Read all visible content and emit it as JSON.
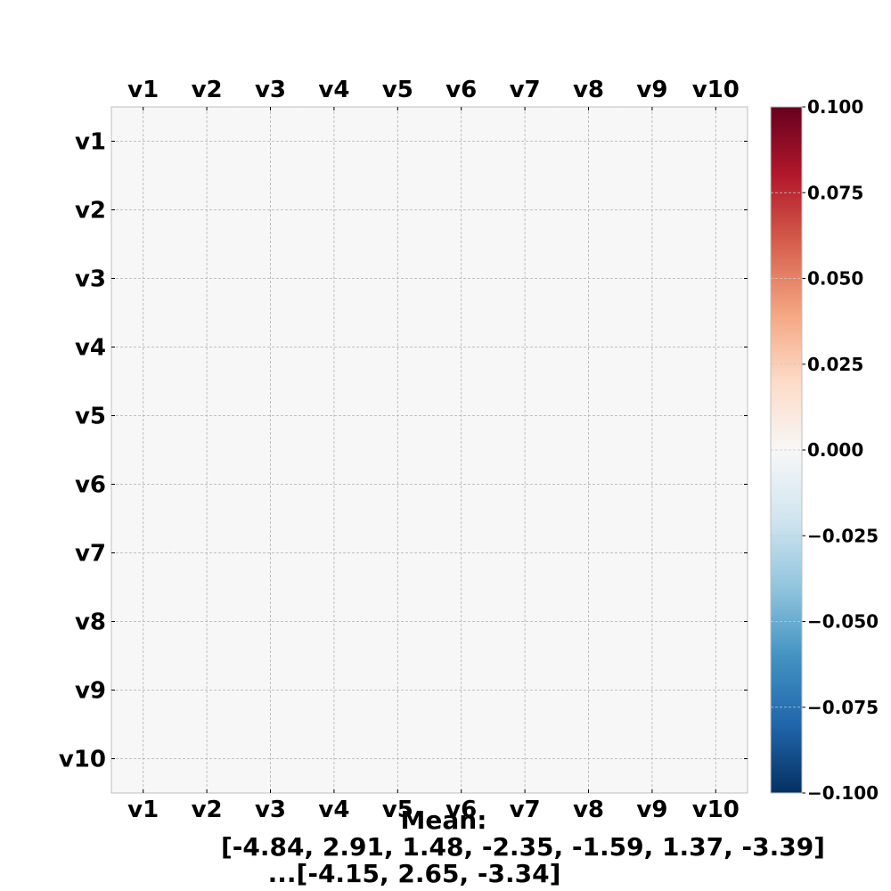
{
  "chart_data": {
    "type": "heatmap",
    "title": "",
    "xlabel": "",
    "ylabel": "",
    "x_labels": [
      "v1",
      "v2",
      "v3",
      "v4",
      "v5",
      "v6",
      "v7",
      "v8",
      "v9",
      "v10"
    ],
    "y_labels": [
      "v1",
      "v2",
      "v3",
      "v4",
      "v5",
      "v6",
      "v7",
      "v8",
      "v9",
      "v10"
    ],
    "values": [
      [
        0,
        0,
        0,
        0,
        0,
        0,
        0,
        0,
        0,
        0
      ],
      [
        0,
        0,
        0,
        0,
        0,
        0,
        0,
        0,
        0,
        0
      ],
      [
        0,
        0,
        0,
        0,
        0,
        0,
        0,
        0,
        0,
        0
      ],
      [
        0,
        0,
        0,
        0,
        0,
        0,
        0,
        0,
        0,
        0
      ],
      [
        0,
        0,
        0,
        0,
        0,
        0,
        0,
        0,
        0,
        0
      ],
      [
        0,
        0,
        0,
        0,
        0,
        0,
        0,
        0,
        0,
        0
      ],
      [
        0,
        0,
        0,
        0,
        0,
        0,
        0,
        0,
        0,
        0
      ],
      [
        0,
        0,
        0,
        0,
        0,
        0,
        0,
        0,
        0,
        0
      ],
      [
        0,
        0,
        0,
        0,
        0,
        0,
        0,
        0,
        0,
        0
      ],
      [
        0,
        0,
        0,
        0,
        0,
        0,
        0,
        0,
        0,
        0
      ]
    ],
    "grid": true,
    "x_ticks_top": true,
    "x_ticks_bottom": true,
    "colorbar": {
      "position": "right",
      "min": -0.1,
      "max": 0.1,
      "ticks": [
        0.1,
        0.075,
        0.05,
        0.025,
        0.0,
        -0.025,
        -0.05,
        -0.075,
        -0.1
      ],
      "tick_labels": [
        "0.100",
        "0.075",
        "0.050",
        "0.025",
        "0.000",
        "−0.025",
        "−0.050",
        "−0.075",
        "−0.100"
      ],
      "colormap": "RdBu_r",
      "colors": [
        "#053061",
        "#2166ac",
        "#4393c3",
        "#92c5de",
        "#d1e5f0",
        "#f7f7f7",
        "#fddbc7",
        "#f4a582",
        "#d6604d",
        "#b2182b",
        "#67001f"
      ]
    },
    "caption_lines": [
      "Mean:",
      "[-4.84, 2.91, 1.48, -2.35, -1.59, 1.37, -3.39]",
      "...[-4.15, 2.65, -3.34]"
    ]
  }
}
